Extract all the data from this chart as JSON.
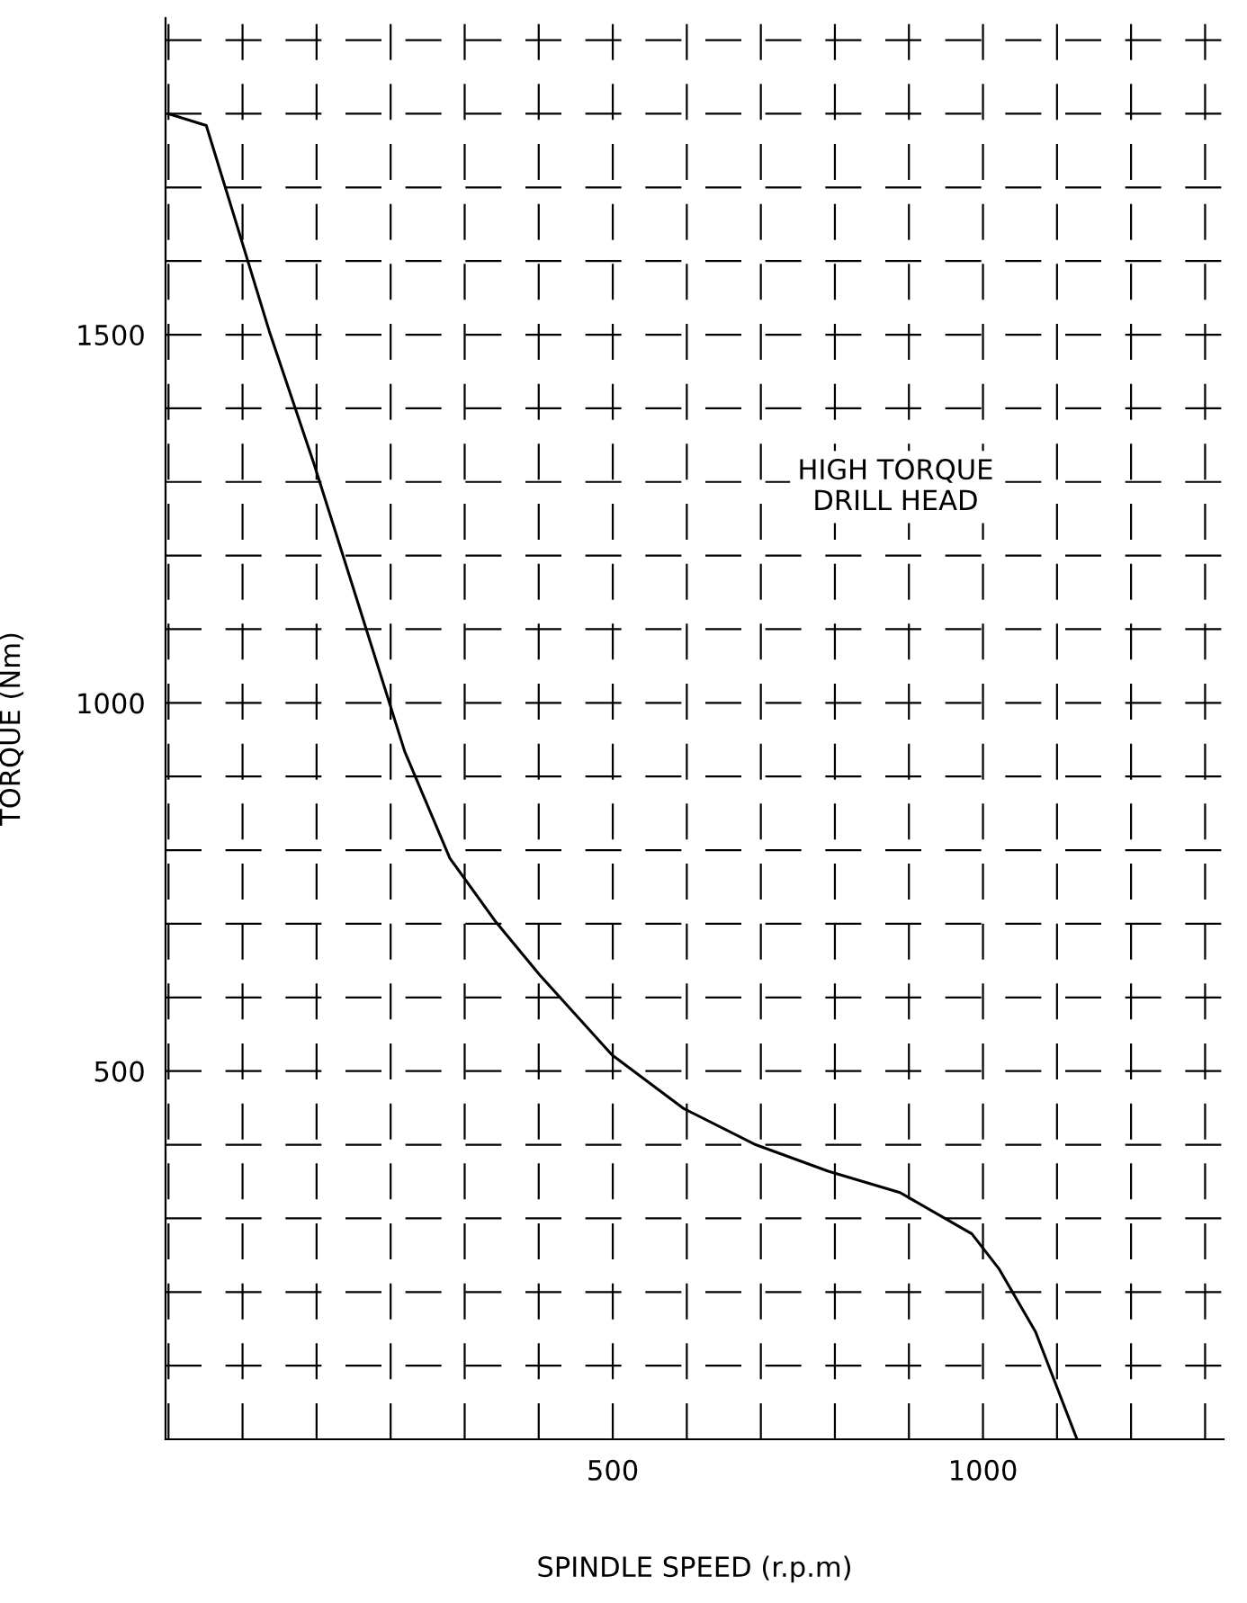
{
  "chart_data": {
    "type": "line",
    "xlabel": "SPINDLE SPEED (r.p.m)",
    "ylabel": "TORQUE (Nm)",
    "annotations": [
      "HIGH TORQUE\nDRILL HEAD"
    ],
    "x": [
      -100,
      -49,
      -12,
      36,
      97,
      158,
      219,
      280,
      341,
      401,
      499,
      596,
      693,
      791,
      888,
      985,
      1022,
      1071,
      1127
    ],
    "series": [
      {
        "color": "#000000",
        "values": [
          1800,
          1784,
          1663,
          1505,
          1323,
          1129,
          934,
          789,
          704,
          631,
          522,
          449,
          400,
          364,
          335,
          279,
          231,
          146,
          0
        ]
      }
    ],
    "xlim": [
      -104,
      1325
    ],
    "ylim": [
      0,
      1930
    ],
    "xticks": [
      500,
      1000
    ],
    "yticks": [
      500,
      1000,
      1500
    ],
    "grid": true,
    "marker": "none",
    "line_style": "solid",
    "legend": false
  }
}
